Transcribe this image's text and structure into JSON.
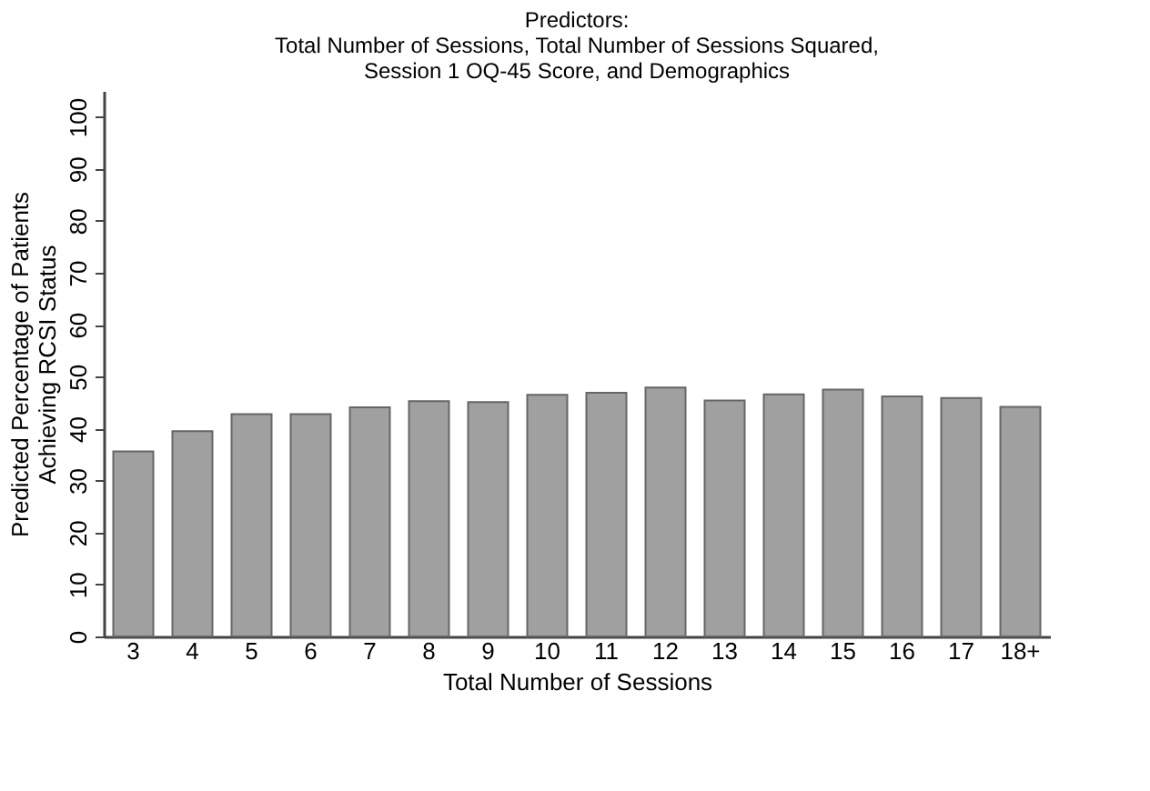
{
  "chart_data": {
    "type": "bar",
    "title": [
      "Predictors:",
      "Total Number of Sessions, Total Number of Sessions Squared,",
      "Session 1 OQ-45 Score, and Demographics"
    ],
    "xlabel": "Total Number of Sessions",
    "ylabel": [
      "Predicted Percentage of Patients",
      "Achieving RCSI Status"
    ],
    "categories": [
      "3",
      "4",
      "5",
      "6",
      "7",
      "8",
      "9",
      "10",
      "11",
      "12",
      "13",
      "14",
      "15",
      "16",
      "17",
      "18+"
    ],
    "values": [
      35.6,
      39.5,
      42.8,
      42.8,
      44.1,
      45.3,
      45.1,
      46.5,
      46.9,
      47.9,
      45.4,
      46.6,
      47.5,
      46.2,
      45.9,
      44.2
    ],
    "color": "#a0a0a0",
    "ylim": [
      0,
      105
    ],
    "yticks": [
      0,
      10,
      20,
      30,
      40,
      50,
      60,
      70,
      80,
      90,
      100
    ]
  }
}
